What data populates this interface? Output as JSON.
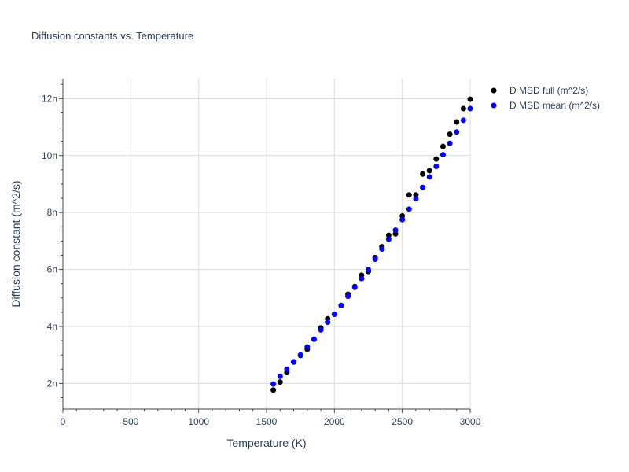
{
  "chart_data": {
    "type": "scatter",
    "title": "Diffusion constants vs. Temperature",
    "xlabel": "Temperature (K)",
    "ylabel": "Diffusion constant (m^2/s)",
    "xlim": [
      0,
      3000
    ],
    "ylim": [
      1.1,
      12.7
    ],
    "x_ticks": [
      {
        "value": 0,
        "label": "0"
      },
      {
        "value": 500,
        "label": "500"
      },
      {
        "value": 1000,
        "label": "1000"
      },
      {
        "value": 1500,
        "label": "1500"
      },
      {
        "value": 2000,
        "label": "2000"
      },
      {
        "value": 2500,
        "label": "2500"
      },
      {
        "value": 3000,
        "label": "3000"
      }
    ],
    "y_ticks": [
      {
        "value": 2,
        "label": "2n"
      },
      {
        "value": 4,
        "label": "4n"
      },
      {
        "value": 6,
        "label": "6n"
      },
      {
        "value": 8,
        "label": "8n"
      },
      {
        "value": 10,
        "label": "10n"
      },
      {
        "value": 12,
        "label": "12n"
      }
    ],
    "legend_position": "top-right",
    "series": [
      {
        "name": "D MSD full (m^2/s)",
        "color": "#000000",
        "x": [
          1550,
          1600,
          1650,
          1700,
          1750,
          1800,
          1850,
          1900,
          1950,
          2000,
          2050,
          2100,
          2150,
          2200,
          2250,
          2300,
          2350,
          2400,
          2450,
          2500,
          2550,
          2600,
          2650,
          2700,
          2750,
          2800,
          2850,
          2900,
          2950,
          3000
        ],
        "y": [
          1.77,
          2.05,
          2.38,
          2.75,
          2.98,
          3.2,
          3.55,
          3.95,
          4.27,
          4.43,
          4.73,
          5.13,
          5.4,
          5.8,
          5.93,
          6.42,
          6.8,
          7.2,
          7.25,
          7.88,
          8.62,
          8.62,
          9.35,
          9.47,
          9.88,
          10.32,
          10.75,
          11.18,
          11.65,
          11.98
        ]
      },
      {
        "name": "D MSD mean (m^2/s)",
        "color": "#0000ff",
        "x": [
          1550,
          1600,
          1650,
          1700,
          1750,
          1800,
          1850,
          1900,
          1950,
          2000,
          2050,
          2100,
          2150,
          2200,
          2250,
          2300,
          2350,
          2400,
          2450,
          2500,
          2550,
          2600,
          2650,
          2700,
          2750,
          2800,
          2850,
          2900,
          2950,
          3000
        ],
        "y": [
          1.98,
          2.25,
          2.5,
          2.76,
          3.0,
          3.28,
          3.55,
          3.88,
          4.15,
          4.43,
          4.74,
          5.06,
          5.37,
          5.68,
          5.99,
          6.36,
          6.72,
          7.06,
          7.38,
          7.75,
          8.12,
          8.48,
          8.88,
          9.25,
          9.62,
          10.03,
          10.43,
          10.83,
          11.24,
          11.65
        ]
      }
    ]
  }
}
